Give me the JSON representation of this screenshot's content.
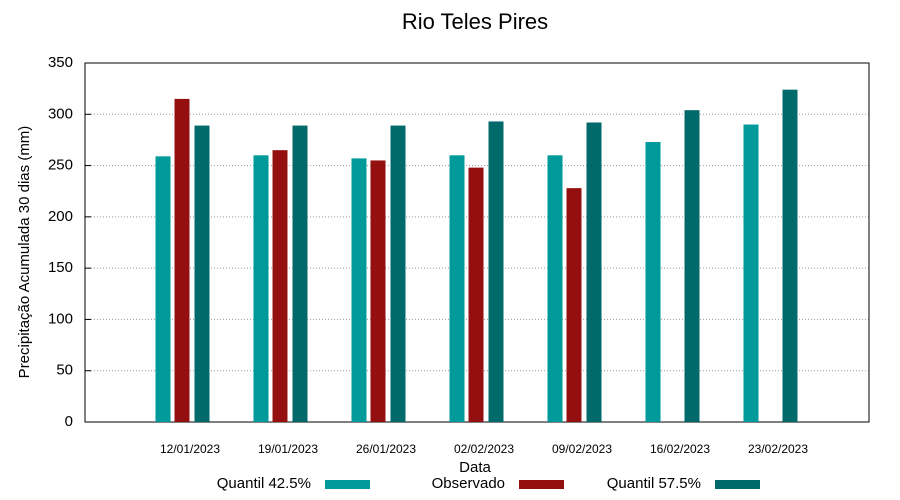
{
  "chart_data": {
    "type": "bar",
    "title": "Rio Teles Pires",
    "x_label": "Data",
    "y_label": "Precipitação Acumulada 30 dias (mm)",
    "categories": [
      "12/01/2023",
      "19/01/2023",
      "26/01/2023",
      "02/02/2023",
      "09/02/2023",
      "16/02/2023",
      "23/02/2023"
    ],
    "series": [
      {
        "name": "Quantil 42.5%",
        "color": "#009a9a",
        "values": [
          259,
          260,
          257,
          260,
          260,
          273,
          290
        ]
      },
      {
        "name": "Observado",
        "color": "#941010",
        "values": [
          315,
          265,
          255,
          248,
          228,
          null,
          null
        ]
      },
      {
        "name": "Quantil 57.5%",
        "color": "#006a6a",
        "values": [
          289,
          289,
          289,
          293,
          292,
          304,
          324
        ]
      }
    ],
    "ylim": [
      0,
      350
    ],
    "yticks": [
      0,
      50,
      100,
      150,
      200,
      250,
      300,
      350
    ],
    "grid": true,
    "legend": "bottom"
  }
}
